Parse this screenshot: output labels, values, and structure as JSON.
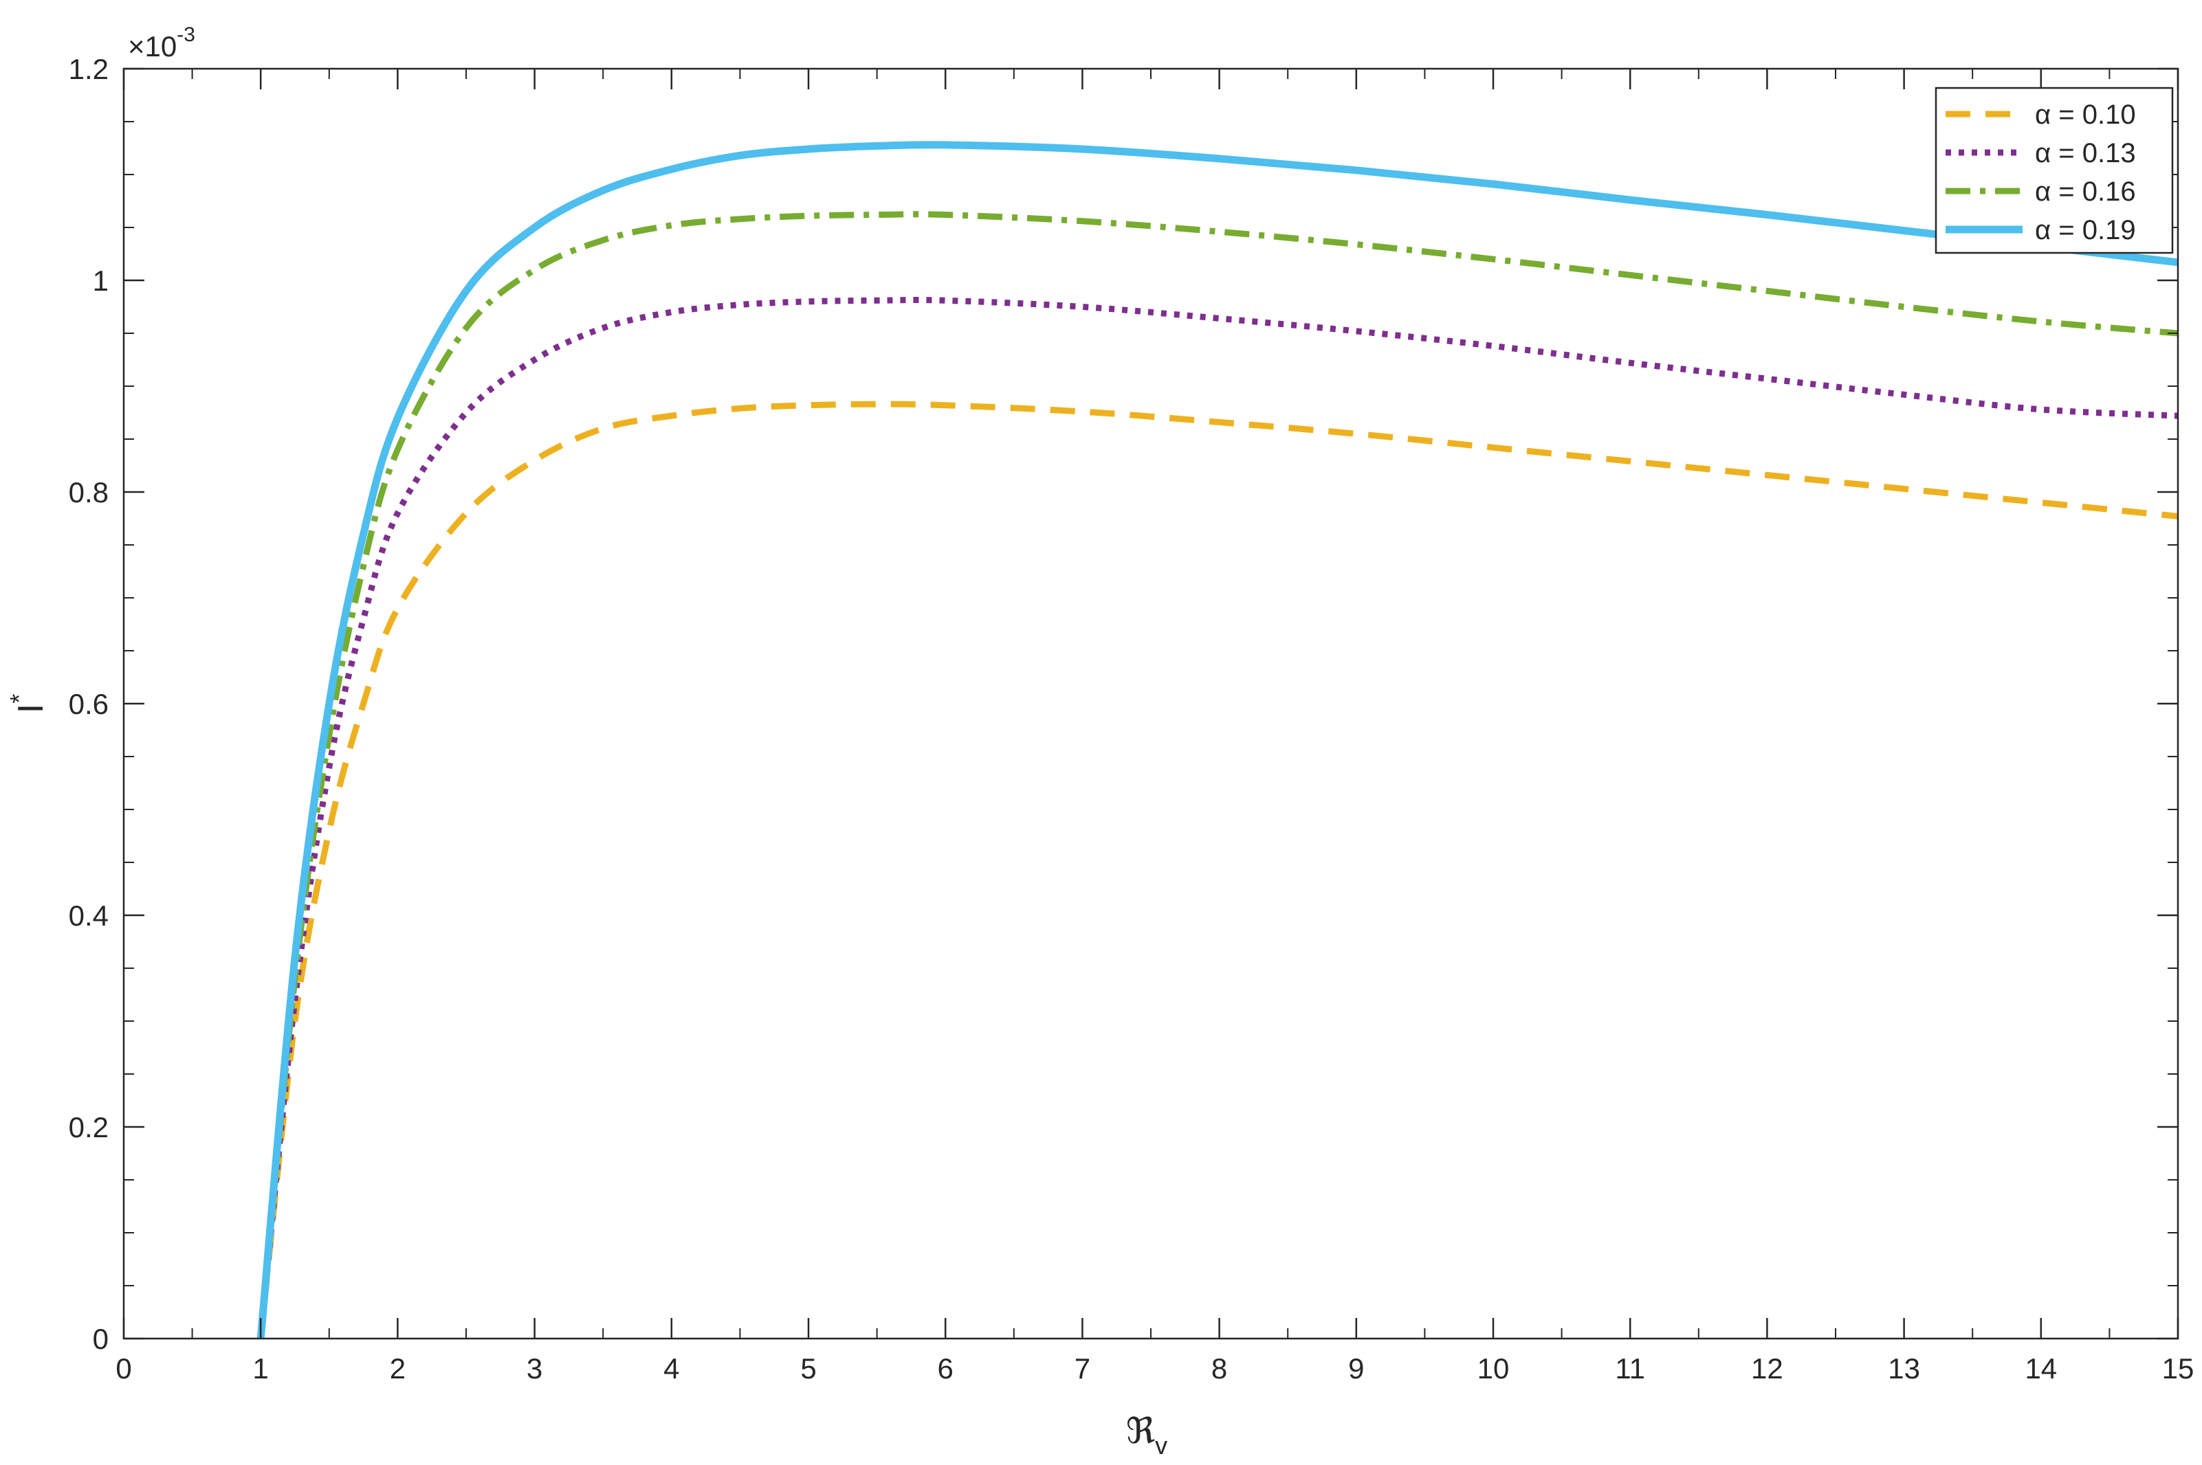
{
  "chart_data": {
    "type": "line",
    "title": "",
    "xlabel": "ℜ",
    "xlabel_sub": "v",
    "ylabel": "I",
    "ylabel_sup": "*",
    "y_multiplier_label": "×10",
    "y_multiplier_exp": "-3",
    "xlim": [
      0,
      15
    ],
    "ylim": [
      0,
      1.2
    ],
    "xticks": [
      0,
      1,
      2,
      3,
      4,
      5,
      6,
      7,
      8,
      9,
      10,
      11,
      12,
      13,
      14,
      15
    ],
    "xtick_labels": [
      "0",
      "1",
      "2",
      "3",
      "4",
      "5",
      "6",
      "7",
      "8",
      "9",
      "10",
      "11",
      "12",
      "13",
      "14",
      "15"
    ],
    "yticks": [
      0,
      0.2,
      0.4,
      0.6,
      0.8,
      1,
      1.2
    ],
    "ytick_labels": [
      "0",
      "0.2",
      "0.4",
      "0.6",
      "0.8",
      "1",
      "1.2"
    ],
    "grid": false,
    "legend_position": "top-right",
    "x": [
      1,
      1.25,
      1.5,
      1.75,
      2,
      2.5,
      3,
      3.5,
      4,
      4.5,
      5,
      5.5,
      6,
      7,
      8,
      9,
      10,
      11,
      12,
      13,
      14,
      15
    ],
    "series": [
      {
        "name": "α = 0.10",
        "color": "#EDB120",
        "dash": "dashed",
        "values": [
          0,
          0.3,
          0.48,
          0.6,
          0.69,
          0.78,
          0.83,
          0.86,
          0.872,
          0.879,
          0.882,
          0.883,
          0.882,
          0.876,
          0.866,
          0.855,
          0.842,
          0.829,
          0.816,
          0.803,
          0.79,
          0.777
        ]
      },
      {
        "name": "α = 0.13",
        "color": "#7E2F8E",
        "dash": "dotted",
        "values": [
          0,
          0.32,
          0.54,
          0.68,
          0.78,
          0.875,
          0.925,
          0.955,
          0.97,
          0.977,
          0.98,
          0.981,
          0.981,
          0.975,
          0.964,
          0.952,
          0.938,
          0.922,
          0.907,
          0.892,
          0.878,
          0.872
        ]
      },
      {
        "name": "α = 0.16",
        "color": "#77AC30",
        "dash": "dashdot",
        "values": [
          0,
          0.34,
          0.57,
          0.73,
          0.84,
          0.955,
          1.01,
          1.038,
          1.052,
          1.058,
          1.061,
          1.062,
          1.062,
          1.056,
          1.046,
          1.034,
          1.02,
          1.005,
          0.99,
          0.975,
          0.961,
          0.95
        ]
      },
      {
        "name": "α = 0.19",
        "color": "#4DBEEE",
        "dash": "solid",
        "values": [
          0,
          0.36,
          0.6,
          0.76,
          0.87,
          0.99,
          1.05,
          1.085,
          1.105,
          1.118,
          1.124,
          1.127,
          1.128,
          1.124,
          1.115,
          1.104,
          1.091,
          1.076,
          1.062,
          1.047,
          1.032,
          1.017
        ]
      }
    ]
  }
}
